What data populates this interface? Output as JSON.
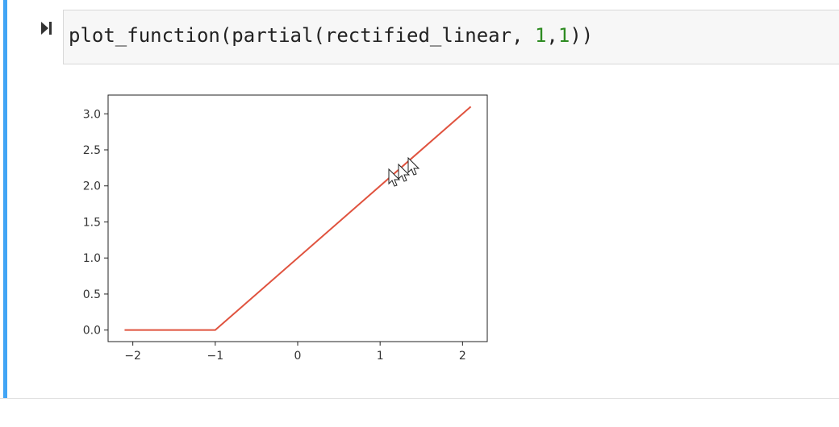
{
  "cell": {
    "code_prefix": "plot_function(partial(rectified_linear, ",
    "arg1": "1",
    "separator": ",",
    "arg2": "1",
    "code_suffix": "))"
  },
  "colors": {
    "cell_bar": "#42a5f5",
    "line": "#e0533f",
    "number": "#2e8b22"
  },
  "icons": {
    "run": "run-cell-icon",
    "cursor": "mouse-cursor-icon"
  },
  "chart_data": {
    "type": "line",
    "title": "",
    "xlabel": "",
    "ylabel": "",
    "xlim": [
      -2.3,
      2.3
    ],
    "ylim": [
      -0.16,
      3.26
    ],
    "xticks": [
      -2,
      -1,
      0,
      1,
      2
    ],
    "xtick_labels": [
      "−2",
      "−1",
      "0",
      "1",
      "2"
    ],
    "yticks": [
      0.0,
      0.5,
      1.0,
      1.5,
      2.0,
      2.5,
      3.0
    ],
    "ytick_labels": [
      "0.0",
      "0.5",
      "1.0",
      "1.5",
      "2.0",
      "2.5",
      "3.0"
    ],
    "grid": false,
    "series": [
      {
        "x": [
          -2.1,
          -1.0,
          2.1
        ],
        "y": [
          0.0,
          0.0,
          3.1
        ]
      }
    ]
  }
}
